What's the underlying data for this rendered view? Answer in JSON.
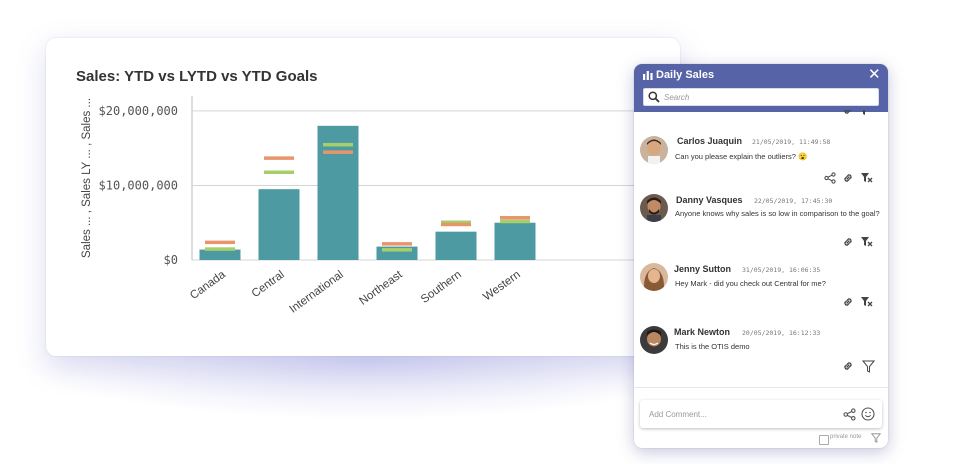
{
  "card": {
    "title": "Sales: YTD vs LYTD vs YTD Goals"
  },
  "chart_data": {
    "type": "bar",
    "title": "Sales: YTD vs LYTD vs YTD Goals",
    "ylabel": "Sales ... , Sales LY ... , Sales ...",
    "xlabel": "",
    "categories": [
      "Canada",
      "Central",
      "International",
      "Northeast",
      "Southern",
      "Western"
    ],
    "ylim": [
      0,
      22000000
    ],
    "yticks": [
      0,
      10000000,
      20000000
    ],
    "ytick_labels": [
      "$0",
      "$10,000,000",
      "$20,000,000"
    ],
    "grid": true,
    "series": [
      {
        "values": [
          1400000,
          9500000,
          18000000,
          1800000,
          3800000,
          5000000
        ],
        "color": "#4e9aa2",
        "mark": "bar"
      },
      {
        "values": [
          1500000,
          11800000,
          15500000,
          1400000,
          5100000,
          5200000
        ],
        "color": "#a6cf6b",
        "mark": "marker"
      },
      {
        "values": [
          2400000,
          13700000,
          14500000,
          2200000,
          4800000,
          5700000
        ],
        "color": "#e8956b",
        "mark": "marker"
      }
    ]
  },
  "panel": {
    "title": "Daily Sales",
    "close_label": "✕",
    "search_placeholder": "Search",
    "messages": [
      {
        "name": "Carlos Juaquin",
        "date": "21/05/2019, 11:49:58",
        "text": "Can you please explain the outliers? 😮",
        "avatar_bg": "#c9b39c",
        "skin": "#d9a77f",
        "hair": "#3a2a20"
      },
      {
        "name": "Danny Vasques",
        "date": "22/05/2019, 17:45:30",
        "text": "Anyone knows why sales is so low in comparison to the goal?",
        "avatar_bg": "#6b5b4e",
        "skin": "#c08a64",
        "hair": "#2a1c14"
      },
      {
        "name": "Jenny Sutton",
        "date": "31/05/2019, 16:06:35",
        "text": "Hey Mark - did you check out Central for me?",
        "avatar_bg": "#d8b99c",
        "skin": "#e3b690",
        "hair": "#8a5a36"
      },
      {
        "name": "Mark Newton",
        "date": "20/05/2019, 16:12:33",
        "text": "This is the OTIS demo",
        "avatar_bg": "#3c3a3a",
        "skin": "#b98860",
        "hair": "#1e1a18"
      }
    ],
    "comment_placeholder": "Add Comment...",
    "private_note_label": "private note"
  }
}
